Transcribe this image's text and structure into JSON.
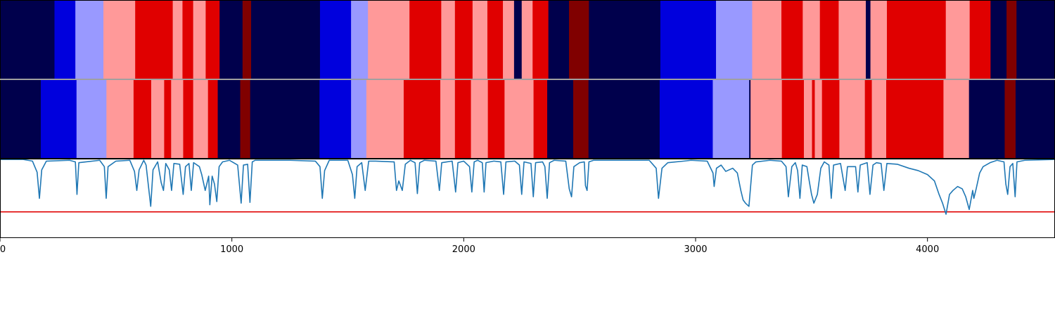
{
  "chart_data": {
    "type": "heatmap",
    "description_free": true,
    "x_axis": {
      "min": 0,
      "max": 4550,
      "ticks": [
        0,
        1000,
        2000,
        3000,
        4000
      ],
      "tick_labels": [
        "0",
        "1000",
        "2000",
        "3000",
        "4000"
      ]
    },
    "colors": {
      "0": "#00004c",
      "1": "#0000dd",
      "2": "#9999ff",
      "3": "#ff9999",
      "4": "#e00000",
      "5": "#800000",
      "line": "#1f77b4",
      "threshold": "#e00000"
    },
    "segments_top": [
      [
        0,
        235,
        0
      ],
      [
        235,
        325,
        1
      ],
      [
        325,
        446,
        2
      ],
      [
        446,
        583,
        3
      ],
      [
        583,
        745,
        4
      ],
      [
        745,
        787,
        3
      ],
      [
        787,
        833,
        4
      ],
      [
        833,
        887,
        3
      ],
      [
        887,
        947,
        4
      ],
      [
        947,
        1046,
        0
      ],
      [
        1046,
        1083,
        5
      ],
      [
        1083,
        1380,
        0
      ],
      [
        1380,
        1514,
        1
      ],
      [
        1514,
        1587,
        2
      ],
      [
        1587,
        1766,
        3
      ],
      [
        1766,
        1903,
        4
      ],
      [
        1903,
        1962,
        3
      ],
      [
        1962,
        2038,
        4
      ],
      [
        2038,
        2102,
        3
      ],
      [
        2102,
        2169,
        4
      ],
      [
        2169,
        2217,
        3
      ],
      [
        2217,
        2250,
        0
      ],
      [
        2250,
        2297,
        3
      ],
      [
        2297,
        2365,
        4
      ],
      [
        2365,
        2454,
        0
      ],
      [
        2454,
        2540,
        5
      ],
      [
        2540,
        2848,
        0
      ],
      [
        2848,
        3088,
        1
      ],
      [
        3088,
        3244,
        2
      ],
      [
        3244,
        3370,
        3
      ],
      [
        3370,
        3462,
        4
      ],
      [
        3462,
        3536,
        3
      ],
      [
        3536,
        3617,
        4
      ],
      [
        3617,
        3734,
        3
      ],
      [
        3734,
        3754,
        0
      ],
      [
        3754,
        3825,
        3
      ],
      [
        3825,
        4079,
        4
      ],
      [
        4079,
        4182,
        3
      ],
      [
        4182,
        4272,
        4
      ],
      [
        4272,
        4341,
        0
      ],
      [
        4341,
        4384,
        5
      ],
      [
        4384,
        4550,
        0
      ]
    ],
    "segments_bottom": [
      [
        0,
        176,
        0
      ],
      [
        176,
        330,
        1
      ],
      [
        330,
        459,
        2
      ],
      [
        459,
        576,
        3
      ],
      [
        576,
        652,
        4
      ],
      [
        652,
        708,
        3
      ],
      [
        708,
        738,
        4
      ],
      [
        738,
        790,
        3
      ],
      [
        790,
        833,
        4
      ],
      [
        833,
        897,
        3
      ],
      [
        897,
        939,
        4
      ],
      [
        939,
        1036,
        0
      ],
      [
        1036,
        1079,
        5
      ],
      [
        1079,
        1378,
        0
      ],
      [
        1378,
        1514,
        1
      ],
      [
        1514,
        1580,
        2
      ],
      [
        1580,
        1741,
        3
      ],
      [
        1741,
        1899,
        4
      ],
      [
        1899,
        1962,
        3
      ],
      [
        1962,
        2031,
        4
      ],
      [
        2031,
        2104,
        3
      ],
      [
        2104,
        2176,
        4
      ],
      [
        2176,
        2301,
        3
      ],
      [
        2301,
        2360,
        4
      ],
      [
        2360,
        2472,
        0
      ],
      [
        2472,
        2538,
        5
      ],
      [
        2538,
        2845,
        0
      ],
      [
        2845,
        3074,
        1
      ],
      [
        3074,
        3231,
        2
      ],
      [
        3231,
        3237,
        0
      ],
      [
        3237,
        3372,
        3
      ],
      [
        3372,
        3467,
        4
      ],
      [
        3467,
        3502,
        3
      ],
      [
        3502,
        3514,
        4
      ],
      [
        3514,
        3545,
        3
      ],
      [
        3545,
        3620,
        4
      ],
      [
        3620,
        3730,
        3
      ],
      [
        3730,
        3760,
        4
      ],
      [
        3760,
        3822,
        3
      ],
      [
        3822,
        4069,
        4
      ],
      [
        4069,
        4179,
        3
      ],
      [
        4179,
        4333,
        0
      ],
      [
        4333,
        4380,
        5
      ],
      [
        4380,
        4550,
        0
      ]
    ],
    "line_panel": {
      "y_min": 0.0,
      "y_max": 1.0,
      "threshold": 0.33
    },
    "line_points": [
      [
        0,
        0.99
      ],
      [
        100,
        0.99
      ],
      [
        140,
        0.97
      ],
      [
        160,
        0.83
      ],
      [
        170,
        0.5
      ],
      [
        180,
        0.86
      ],
      [
        200,
        0.97
      ],
      [
        300,
        0.98
      ],
      [
        325,
        0.96
      ],
      [
        332,
        0.55
      ],
      [
        340,
        0.95
      ],
      [
        430,
        0.98
      ],
      [
        450,
        0.9
      ],
      [
        458,
        0.5
      ],
      [
        466,
        0.9
      ],
      [
        500,
        0.97
      ],
      [
        560,
        0.98
      ],
      [
        580,
        0.84
      ],
      [
        590,
        0.6
      ],
      [
        600,
        0.86
      ],
      [
        620,
        0.98
      ],
      [
        630,
        0.92
      ],
      [
        640,
        0.66
      ],
      [
        650,
        0.4
      ],
      [
        660,
        0.86
      ],
      [
        680,
        0.96
      ],
      [
        695,
        0.7
      ],
      [
        705,
        0.6
      ],
      [
        715,
        0.94
      ],
      [
        730,
        0.86
      ],
      [
        740,
        0.6
      ],
      [
        750,
        0.94
      ],
      [
        775,
        0.93
      ],
      [
        790,
        0.55
      ],
      [
        800,
        0.9
      ],
      [
        815,
        0.94
      ],
      [
        825,
        0.6
      ],
      [
        835,
        0.95
      ],
      [
        860,
        0.9
      ],
      [
        870,
        0.8
      ],
      [
        885,
        0.6
      ],
      [
        900,
        0.78
      ],
      [
        905,
        0.42
      ],
      [
        915,
        0.78
      ],
      [
        925,
        0.68
      ],
      [
        935,
        0.46
      ],
      [
        945,
        0.9
      ],
      [
        960,
        0.96
      ],
      [
        990,
        0.98
      ],
      [
        1025,
        0.92
      ],
      [
        1040,
        0.44
      ],
      [
        1050,
        0.92
      ],
      [
        1068,
        0.93
      ],
      [
        1078,
        0.45
      ],
      [
        1088,
        0.96
      ],
      [
        1100,
        0.98
      ],
      [
        1250,
        0.98
      ],
      [
        1360,
        0.97
      ],
      [
        1380,
        0.9
      ],
      [
        1390,
        0.5
      ],
      [
        1400,
        0.85
      ],
      [
        1420,
        0.98
      ],
      [
        1500,
        0.98
      ],
      [
        1520,
        0.8
      ],
      [
        1530,
        0.5
      ],
      [
        1540,
        0.9
      ],
      [
        1560,
        0.95
      ],
      [
        1575,
        0.6
      ],
      [
        1590,
        0.97
      ],
      [
        1620,
        0.97
      ],
      [
        1700,
        0.96
      ],
      [
        1710,
        0.6
      ],
      [
        1720,
        0.72
      ],
      [
        1735,
        0.6
      ],
      [
        1748,
        0.93
      ],
      [
        1770,
        0.98
      ],
      [
        1790,
        0.95
      ],
      [
        1800,
        0.56
      ],
      [
        1810,
        0.95
      ],
      [
        1830,
        0.98
      ],
      [
        1880,
        0.97
      ],
      [
        1895,
        0.6
      ],
      [
        1905,
        0.95
      ],
      [
        1950,
        0.97
      ],
      [
        1965,
        0.58
      ],
      [
        1975,
        0.95
      ],
      [
        2000,
        0.97
      ],
      [
        2025,
        0.9
      ],
      [
        2035,
        0.58
      ],
      [
        2045,
        0.96
      ],
      [
        2060,
        0.98
      ],
      [
        2080,
        0.95
      ],
      [
        2088,
        0.58
      ],
      [
        2096,
        0.95
      ],
      [
        2130,
        0.97
      ],
      [
        2160,
        0.96
      ],
      [
        2172,
        0.55
      ],
      [
        2182,
        0.96
      ],
      [
        2220,
        0.97
      ],
      [
        2240,
        0.92
      ],
      [
        2250,
        0.55
      ],
      [
        2260,
        0.96
      ],
      [
        2290,
        0.94
      ],
      [
        2300,
        0.52
      ],
      [
        2310,
        0.95
      ],
      [
        2340,
        0.96
      ],
      [
        2350,
        0.9
      ],
      [
        2360,
        0.5
      ],
      [
        2370,
        0.95
      ],
      [
        2390,
        0.98
      ],
      [
        2440,
        0.97
      ],
      [
        2455,
        0.62
      ],
      [
        2465,
        0.52
      ],
      [
        2475,
        0.9
      ],
      [
        2500,
        0.95
      ],
      [
        2520,
        0.96
      ],
      [
        2525,
        0.66
      ],
      [
        2532,
        0.6
      ],
      [
        2540,
        0.96
      ],
      [
        2560,
        0.98
      ],
      [
        2800,
        0.98
      ],
      [
        2830,
        0.88
      ],
      [
        2840,
        0.5
      ],
      [
        2855,
        0.88
      ],
      [
        2880,
        0.95
      ],
      [
        2950,
        0.97
      ],
      [
        2980,
        0.98
      ],
      [
        3050,
        0.97
      ],
      [
        3075,
        0.82
      ],
      [
        3080,
        0.65
      ],
      [
        3090,
        0.88
      ],
      [
        3110,
        0.92
      ],
      [
        3130,
        0.84
      ],
      [
        3160,
        0.88
      ],
      [
        3180,
        0.82
      ],
      [
        3195,
        0.6
      ],
      [
        3205,
        0.48
      ],
      [
        3215,
        0.44
      ],
      [
        3230,
        0.4
      ],
      [
        3245,
        0.92
      ],
      [
        3260,
        0.96
      ],
      [
        3320,
        0.98
      ],
      [
        3370,
        0.97
      ],
      [
        3390,
        0.9
      ],
      [
        3400,
        0.52
      ],
      [
        3415,
        0.9
      ],
      [
        3430,
        0.95
      ],
      [
        3440,
        0.85
      ],
      [
        3450,
        0.5
      ],
      [
        3460,
        0.92
      ],
      [
        3480,
        0.9
      ],
      [
        3490,
        0.72
      ],
      [
        3500,
        0.55
      ],
      [
        3510,
        0.44
      ],
      [
        3525,
        0.55
      ],
      [
        3540,
        0.88
      ],
      [
        3555,
        0.96
      ],
      [
        3575,
        0.92
      ],
      [
        3585,
        0.5
      ],
      [
        3595,
        0.92
      ],
      [
        3625,
        0.94
      ],
      [
        3645,
        0.6
      ],
      [
        3655,
        0.9
      ],
      [
        3690,
        0.9
      ],
      [
        3700,
        0.58
      ],
      [
        3710,
        0.92
      ],
      [
        3740,
        0.95
      ],
      [
        3752,
        0.55
      ],
      [
        3765,
        0.92
      ],
      [
        3780,
        0.95
      ],
      [
        3800,
        0.94
      ],
      [
        3812,
        0.6
      ],
      [
        3825,
        0.94
      ],
      [
        3870,
        0.93
      ],
      [
        3920,
        0.88
      ],
      [
        3960,
        0.85
      ],
      [
        4000,
        0.8
      ],
      [
        4030,
        0.72
      ],
      [
        4050,
        0.55
      ],
      [
        4065,
        0.44
      ],
      [
        4080,
        0.3
      ],
      [
        4095,
        0.55
      ],
      [
        4110,
        0.6
      ],
      [
        4130,
        0.65
      ],
      [
        4150,
        0.62
      ],
      [
        4165,
        0.52
      ],
      [
        4180,
        0.36
      ],
      [
        4195,
        0.6
      ],
      [
        4200,
        0.5
      ],
      [
        4210,
        0.62
      ],
      [
        4225,
        0.82
      ],
      [
        4240,
        0.9
      ],
      [
        4270,
        0.95
      ],
      [
        4300,
        0.98
      ],
      [
        4330,
        0.96
      ],
      [
        4338,
        0.68
      ],
      [
        4346,
        0.55
      ],
      [
        4356,
        0.9
      ],
      [
        4368,
        0.94
      ],
      [
        4378,
        0.52
      ],
      [
        4386,
        0.96
      ],
      [
        4420,
        0.98
      ],
      [
        4550,
        0.99
      ]
    ]
  }
}
